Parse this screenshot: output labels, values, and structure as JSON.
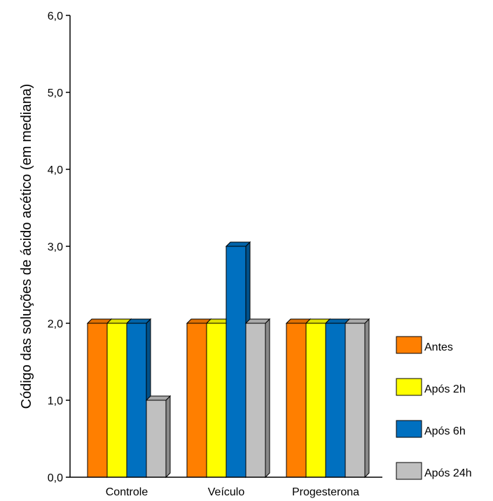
{
  "chart_data": {
    "type": "bar",
    "title": "",
    "xlabel": "",
    "ylabel": "Código das soluções de ácido acético (em mediana)",
    "ylim": [
      0,
      6
    ],
    "yticks": [
      "0,0",
      "1,0",
      "2,0",
      "3,0",
      "4,0",
      "5,0",
      "6,0"
    ],
    "categories": [
      "Controle",
      "Veículo",
      "Progesterona"
    ],
    "series": [
      {
        "name": "Antes",
        "values": [
          2,
          2,
          2
        ],
        "color": "#FF7F00"
      },
      {
        "name": "Após 2h",
        "values": [
          2,
          2,
          2
        ],
        "color": "#FFFF00"
      },
      {
        "name": "Após 6h",
        "values": [
          2,
          3,
          2
        ],
        "color": "#0070C0"
      },
      {
        "name": "Após 24h",
        "values": [
          1,
          2,
          2
        ],
        "color": "#C0C0C0"
      }
    ],
    "legend_position": "right",
    "grid": false,
    "style": "3d-bar"
  }
}
